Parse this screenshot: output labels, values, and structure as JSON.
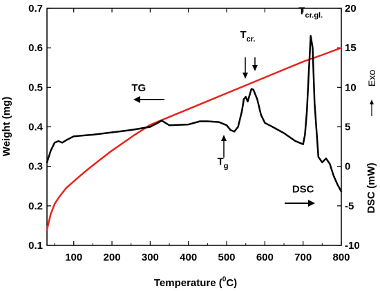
{
  "chart_data": {
    "type": "line",
    "title": "",
    "xlabel": "Temperature (°C)",
    "xlabel_main": "Temperature (",
    "xlabel_sup": "0",
    "xlabel_end": "C)",
    "ylabel_left": "Weight (mg)",
    "ylabel_right": "DSC (mW)",
    "exo_label": "Exo",
    "xlim": [
      30,
      800
    ],
    "ylim_left": [
      0.1,
      0.7
    ],
    "ylim_right": [
      -10,
      20
    ],
    "x_ticks": [
      100,
      200,
      300,
      400,
      500,
      600,
      700,
      800
    ],
    "left_ticks": [
      "0.1",
      "0.2",
      "0.3",
      "0.4",
      "0.5",
      "0.6",
      "0.7"
    ],
    "right_ticks": [
      "-10",
      "-5",
      "0",
      "5",
      "10",
      "15",
      "20"
    ],
    "series": [
      {
        "name": "TG",
        "axis": "left",
        "color": "#e8231c",
        "x": [
          30,
          40,
          50,
          60,
          80,
          100,
          130,
          160,
          200,
          230,
          260,
          300,
          350,
          400,
          450,
          500,
          550,
          600,
          650,
          700,
          750,
          800
        ],
        "y": [
          0.14,
          0.18,
          0.205,
          0.22,
          0.245,
          0.262,
          0.287,
          0.31,
          0.34,
          0.36,
          0.38,
          0.405,
          0.425,
          0.445,
          0.465,
          0.485,
          0.505,
          0.525,
          0.545,
          0.565,
          0.582,
          0.6
        ]
      },
      {
        "name": "DSC",
        "axis": "right",
        "color": "#000000",
        "x": [
          30,
          40,
          50,
          60,
          70,
          80,
          100,
          150,
          200,
          250,
          300,
          320,
          330,
          350,
          400,
          430,
          450,
          480,
          500,
          510,
          520,
          530,
          540,
          545,
          550,
          555,
          560,
          565,
          570,
          580,
          590,
          600,
          620,
          650,
          680,
          700,
          705,
          710,
          715,
          720,
          725,
          730,
          740,
          750,
          760,
          770,
          780,
          790,
          800
        ],
        "y": [
          0.5,
          2.0,
          3.0,
          3.2,
          3.0,
          3.3,
          3.8,
          4.0,
          4.3,
          4.6,
          5.0,
          5.5,
          5.8,
          5.2,
          5.3,
          5.7,
          5.7,
          5.6,
          5.2,
          4.6,
          4.4,
          5.0,
          7.0,
          8.5,
          8.8,
          8.2,
          9.0,
          9.8,
          9.7,
          8.5,
          6.5,
          5.5,
          5.0,
          4.2,
          3.2,
          2.8,
          4.0,
          7.0,
          12.0,
          16.5,
          15.0,
          8.0,
          1.2,
          0.5,
          1.0,
          0.3,
          -1.2,
          -2.3,
          -3.2
        ]
      }
    ],
    "annotations": [
      {
        "main": "TG",
        "sub": "",
        "value_x": 270,
        "value_y": 0.49,
        "axis": "left"
      },
      {
        "main": "DSC",
        "sub": "",
        "value_x": 700,
        "value_y": -3.3,
        "axis": "right"
      },
      {
        "main": "T",
        "sub": "g",
        "value_x": 490,
        "value_y": 0.21,
        "axis": "right"
      },
      {
        "main": "T",
        "sub": "cr.",
        "value_x": 555,
        "value_y": 0.625,
        "axis": "left"
      },
      {
        "main": "T",
        "sub": "cr.gl.",
        "value_x": 720,
        "value_y": 0.685,
        "axis": "left"
      }
    ]
  }
}
